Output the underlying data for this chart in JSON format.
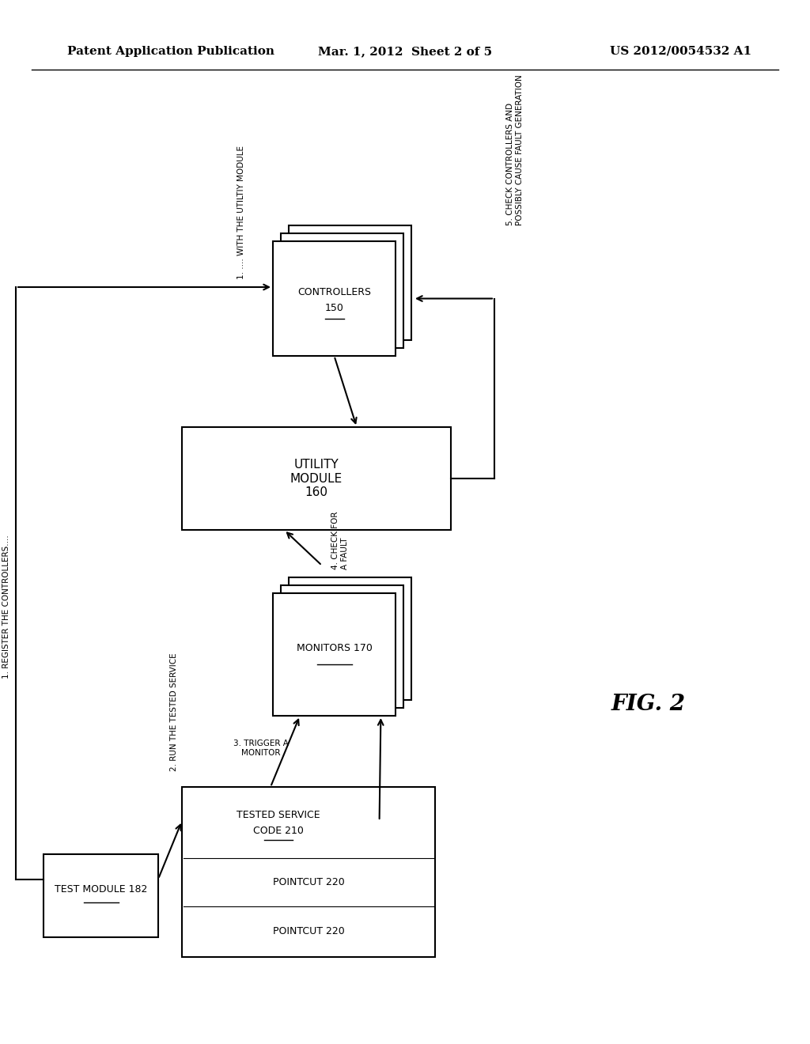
{
  "bg_color": "#ffffff",
  "header_left": "Patent Application Publication",
  "header_mid": "Mar. 1, 2012  Sheet 2 of 5",
  "header_right": "US 2012/0054532 A1",
  "fig_label": "FIG. 2",
  "line_color": "#000000",
  "text_color": "#000000",
  "box_edge_color": "#000000",
  "box_face_color": "#ffffff",
  "step1_reg": "1. REGISTER THE CONTROLLERS....",
  "step1_with": "1. .... WITH THE UTILTIY MODULE",
  "step2": "2. RUN THE TESTED SERVICE",
  "step3": "3. TRIGGER A\nMONITOR",
  "step4": "4. CHECK FOR\nA FAULT",
  "step5_line1": "5. CHECK CONTROLLERS AND",
  "step5_line2": "POSSIBLY CAUSE FAULT GENERATION",
  "label_test": "TEST MODULE 182",
  "label_tsc": "TESTED SERVICE\nCODE 210",
  "label_pc1": "POINTCUT 220",
  "label_pc2": "POINTCUT 220",
  "label_util": "UTILITY\nMODULE\n160",
  "label_ctrl": "CONTROLLERS\n150",
  "label_mon": "MONITORS 170"
}
